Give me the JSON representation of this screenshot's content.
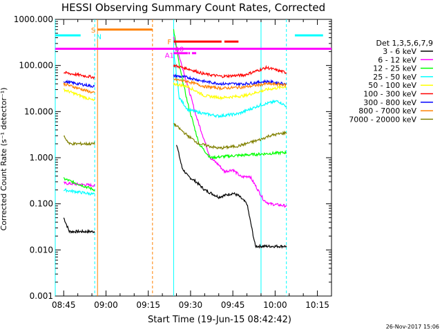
{
  "chart_data": {
    "type": "line",
    "title": "HESSI Observing Summary Count Rates, Corrected",
    "xlabel": "Start Time (19-Jun-15 08:42:42)",
    "ylabel": "Corrected Count Rate (s⁻¹ detector⁻¹)",
    "yscale": "log",
    "ylim": [
      0.001,
      1000
    ],
    "xlim_minutes": [
      -3,
      95
    ],
    "x_tick_labels": [
      "08:45",
      "09:00",
      "09:15",
      "09:30",
      "09:45",
      "10:00",
      "10:15"
    ],
    "x_tick_minutes": [
      0,
      15,
      30,
      45,
      60,
      75,
      90
    ],
    "y_tick_labels": [
      "0.001",
      "0.010",
      "0.100",
      "1.000",
      "10.000",
      "100.000",
      "1000.000"
    ],
    "y_tick_values": [
      0.001,
      0.01,
      0.1,
      1,
      10,
      100,
      1000
    ],
    "legend_header": "Det 1,3,5,6,7,9",
    "legend_position": "right",
    "timestamp": "26-Nov-2017 15:06",
    "series": [
      {
        "name": "3 - 6 keV",
        "color": "#000000",
        "points": [
          [
            0,
            0.05
          ],
          [
            2,
            0.025
          ],
          [
            9,
            0.025
          ],
          [
            11,
            0.025
          ],
          [
            40,
            2.0
          ],
          [
            42,
            0.6
          ],
          [
            44,
            0.4
          ],
          [
            47,
            0.3
          ],
          [
            50,
            0.2
          ],
          [
            55,
            0.14
          ],
          [
            60,
            0.17
          ],
          [
            62,
            0.15
          ],
          [
            65,
            0.1
          ],
          [
            68,
            0.012
          ],
          [
            75,
            0.012
          ],
          [
            79,
            0.012
          ]
        ]
      },
      {
        "name": "6 - 12 keV",
        "color": "#ff00ff",
        "points": [
          [
            0,
            0.28
          ],
          [
            11,
            0.25
          ],
          [
            39,
            400
          ],
          [
            43,
            60
          ],
          [
            47,
            8
          ],
          [
            52,
            1.0
          ],
          [
            55,
            0.7
          ],
          [
            57,
            0.5
          ],
          [
            60,
            0.55
          ],
          [
            63,
            0.38
          ],
          [
            66,
            0.4
          ],
          [
            68,
            0.25
          ],
          [
            71,
            0.12
          ],
          [
            73,
            0.1
          ],
          [
            79,
            0.09
          ]
        ]
      },
      {
        "name": "12 - 25 keV",
        "color": "#00ff00",
        "points": [
          [
            0,
            0.35
          ],
          [
            11,
            0.2
          ],
          [
            39,
            600
          ],
          [
            41,
            100
          ],
          [
            44,
            15
          ],
          [
            48,
            2.0
          ],
          [
            52,
            1.0
          ],
          [
            60,
            1.1
          ],
          [
            79,
            1.3
          ]
        ]
      },
      {
        "name": "25 - 50 keV",
        "color": "#00ffff",
        "points": [
          [
            0,
            0.2
          ],
          [
            11,
            0.16
          ],
          [
            39,
            200
          ],
          [
            41,
            20
          ],
          [
            44,
            11
          ],
          [
            50,
            9
          ],
          [
            55,
            8
          ],
          [
            62,
            9
          ],
          [
            70,
            14
          ],
          [
            76,
            17
          ],
          [
            79,
            13
          ]
        ]
      },
      {
        "name": "50 - 100 keV",
        "color": "#ffff00",
        "points": [
          [
            0,
            30
          ],
          [
            11,
            17
          ],
          [
            39,
            40
          ],
          [
            44,
            35
          ],
          [
            50,
            22
          ],
          [
            56,
            20
          ],
          [
            64,
            22
          ],
          [
            72,
            30
          ],
          [
            79,
            35
          ]
        ]
      },
      {
        "name": "100 - 300 keV",
        "color": "#ff0000",
        "points": [
          [
            0,
            70
          ],
          [
            11,
            55
          ],
          [
            39,
            100
          ],
          [
            44,
            85
          ],
          [
            50,
            65
          ],
          [
            56,
            58
          ],
          [
            64,
            62
          ],
          [
            72,
            90
          ],
          [
            79,
            70
          ]
        ]
      },
      {
        "name": "300 - 800 keV",
        "color": "#0000ff",
        "points": [
          [
            0,
            45
          ],
          [
            11,
            35
          ],
          [
            39,
            60
          ],
          [
            44,
            55
          ],
          [
            50,
            45
          ],
          [
            56,
            40
          ],
          [
            64,
            40
          ],
          [
            72,
            45
          ],
          [
            79,
            40
          ]
        ]
      },
      {
        "name": "800 - 7000 keV",
        "color": "#ff8000",
        "points": [
          [
            0,
            40
          ],
          [
            11,
            25
          ],
          [
            39,
            50
          ],
          [
            44,
            45
          ],
          [
            50,
            35
          ],
          [
            56,
            32
          ],
          [
            64,
            34
          ],
          [
            72,
            40
          ],
          [
            79,
            38
          ]
        ]
      },
      {
        "name": "7000 - 20000 keV",
        "color": "#808000",
        "points": [
          [
            0,
            3.0
          ],
          [
            2,
            2.0
          ],
          [
            11,
            2.0
          ],
          [
            39,
            5.5
          ],
          [
            44,
            3.0
          ],
          [
            48,
            2.0
          ],
          [
            55,
            1.6
          ],
          [
            62,
            1.8
          ],
          [
            70,
            2.5
          ],
          [
            73,
            3.0
          ],
          [
            79,
            3.5
          ]
        ]
      }
    ],
    "annotations": [
      "S",
      "N",
      "F",
      "A0",
      "A1"
    ],
    "vertical_markers_minutes": [
      -3,
      11,
      12,
      31.5,
      39,
      70,
      79
    ]
  }
}
